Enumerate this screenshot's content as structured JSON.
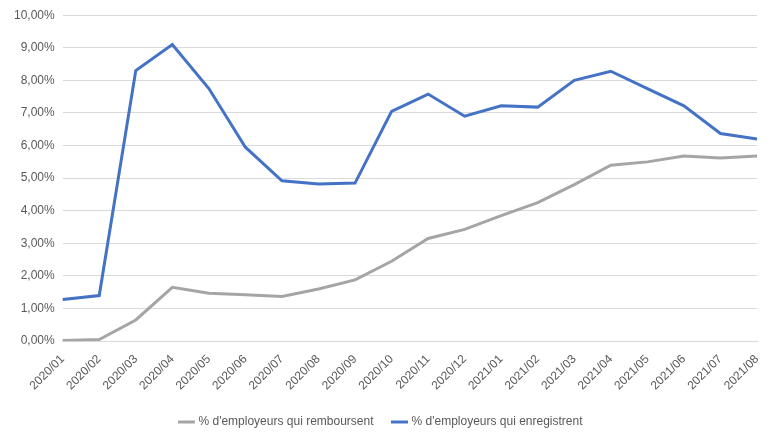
{
  "chart_data": {
    "type": "line",
    "categories": [
      "2020/01",
      "2020/02",
      "2020/03",
      "2020/04",
      "2020/05",
      "2020/06",
      "2020/07",
      "2020/08",
      "2020/09",
      "2020/10",
      "2020/11",
      "2020/12",
      "2021/01",
      "2021/02",
      "2021/03",
      "2021/04",
      "2021/05",
      "2021/06",
      "2021/07",
      "2021/08"
    ],
    "series": [
      {
        "name": "% d'employeurs qui remboursent",
        "color": "#a5a5a5",
        "values": [
          0.02,
          0.05,
          0.65,
          1.65,
          1.47,
          1.42,
          1.37,
          1.6,
          1.88,
          2.45,
          3.15,
          3.43,
          3.85,
          4.25,
          4.8,
          5.4,
          5.5,
          5.68,
          5.62,
          5.68
        ]
      },
      {
        "name": "% d'employeurs qui enregistrent",
        "color": "#4472c4",
        "values": [
          1.28,
          1.4,
          8.3,
          9.1,
          7.75,
          5.95,
          4.92,
          4.82,
          4.85,
          7.05,
          7.58,
          6.9,
          7.22,
          7.18,
          8.0,
          8.28,
          7.75,
          7.22,
          6.37,
          6.2
        ]
      }
    ],
    "ylim": [
      0,
      10
    ],
    "yticks": [
      {
        "value": 0,
        "label": "0,00%"
      },
      {
        "value": 1,
        "label": "1,00%"
      },
      {
        "value": 2,
        "label": "2,00%"
      },
      {
        "value": 3,
        "label": "3,00%"
      },
      {
        "value": 4,
        "label": "4,00%"
      },
      {
        "value": 5,
        "label": "5,00%"
      },
      {
        "value": 6,
        "label": "6,00%"
      },
      {
        "value": 7,
        "label": "7,00%"
      },
      {
        "value": 8,
        "label": "8,00%"
      },
      {
        "value": 9,
        "label": "9,00%"
      },
      {
        "value": 10,
        "label": "10,00%"
      }
    ],
    "grid": true,
    "legend": "bottom"
  }
}
